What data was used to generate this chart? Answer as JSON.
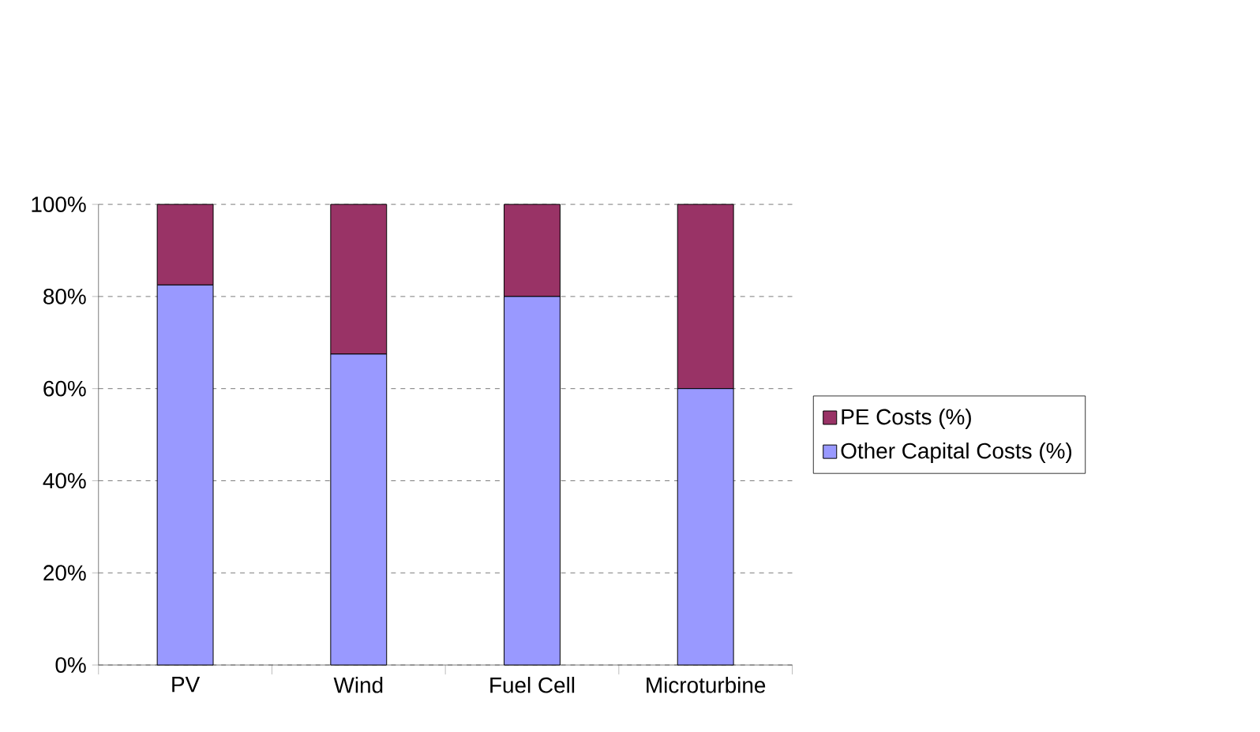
{
  "chart_data": {
    "type": "bar",
    "stacked": true,
    "categories": [
      "PV",
      "Wind",
      "Fuel Cell",
      "Microturbine"
    ],
    "series": [
      {
        "name": "Other Capital Costs (%)",
        "color": "#9999ff",
        "values": [
          82.5,
          67.5,
          80,
          60
        ]
      },
      {
        "name": "PE Costs (%)",
        "color": "#993366",
        "values": [
          17.5,
          32.5,
          20,
          40
        ]
      }
    ],
    "ylim": [
      0,
      100
    ],
    "yticks": [
      {
        "value": 0,
        "label": "0%"
      },
      {
        "value": 20,
        "label": "20%"
      },
      {
        "value": 40,
        "label": "40%"
      },
      {
        "value": 60,
        "label": "60%"
      },
      {
        "value": 80,
        "label": "80%"
      },
      {
        "value": 100,
        "label": "100%"
      }
    ],
    "grid": "y",
    "legend": "right"
  }
}
